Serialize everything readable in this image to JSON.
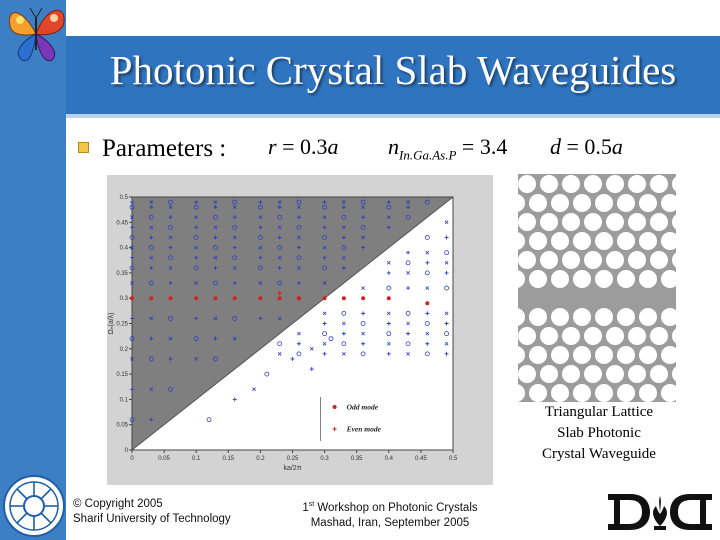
{
  "slide": {
    "title": "Photonic Crystal Slab Waveguides",
    "parameters_label": "Parameters :",
    "formulas": {
      "r_lhs": "r",
      "r_rhs": " = 0.3",
      "r_unit": "a",
      "n_lhs": "n",
      "n_sub": "In.Ga.As.P",
      "n_rhs": " = 3.4",
      "d_lhs": "d",
      "d_rhs": " = 0.5",
      "d_unit": "a"
    },
    "caption": [
      "Triangular Lattice",
      "Slab Photonic",
      "Crystal Waveguide"
    ]
  },
  "footer": {
    "copyright_line1": "© Copyright 2005",
    "copyright_line2": "Sharif University of Technology",
    "workshop_ordinal": "1",
    "workshop_sup": "st",
    "workshop_line1_rest": " Workshop on Photonic Crystals",
    "workshop_line2": "Mashad, Iran, September 2005"
  },
  "colors": {
    "title_band": "#2f74bf",
    "left_bar": "#3d7fc4",
    "light_cone": "#7f7f7f",
    "odd_mode": "#d62020",
    "even_mode": "#2b3fc4",
    "bullet": "#f2c64a"
  },
  "icons": {
    "top_logo": "butterfly-logo-icon",
    "footer_logo": "university-emblem-icon",
    "footer_right_logo": "dd-logo-icon"
  },
  "chart_data": {
    "type": "scatter",
    "xlabel": "ka/2π",
    "ylabel": "Ωₙ(a/λ)",
    "xlim": [
      0,
      0.5
    ],
    "ylim": [
      0,
      0.5
    ],
    "x_ticks": [
      "0",
      "0.05",
      "0.1",
      "0.15",
      "0.2",
      "0.25",
      "0.3",
      "0.35",
      "0.4",
      "0.45",
      "0.5"
    ],
    "y_ticks": [
      "0",
      "0.05",
      "0.1",
      "0.15",
      "0.2",
      "0.25",
      "0.3",
      "0.35",
      "0.4",
      "0.45",
      "0.5"
    ],
    "light_line": "y = x",
    "legend": [
      {
        "name": "Odd mode",
        "marker": "dot",
        "color": "#d62020"
      },
      {
        "name": "Even mode",
        "marker": "plus",
        "color": "#d62020"
      }
    ],
    "odd_mode_red": {
      "x": [
        0.0,
        0.03,
        0.06,
        0.1,
        0.13,
        0.16,
        0.2,
        0.23,
        0.26,
        0.3,
        0.33,
        0.36,
        0.4,
        0.46
      ],
      "y": [
        0.3,
        0.3,
        0.3,
        0.3,
        0.3,
        0.3,
        0.3,
        0.3,
        0.3,
        0.3,
        0.3,
        0.3,
        0.3,
        0.29
      ]
    },
    "even_mode_red": {
      "x": [
        0.23,
        0.26
      ],
      "y": [
        0.31,
        0.3
      ]
    },
    "x_columns": [
      0.0,
      0.03,
      0.06,
      0.1,
      0.13,
      0.16,
      0.2,
      0.23,
      0.26,
      0.3,
      0.33,
      0.36,
      0.4,
      0.43,
      0.46,
      0.49
    ],
    "blue_levels_above_cone": [
      0.06,
      0.12,
      0.18,
      0.22,
      0.26,
      0.33,
      0.36,
      0.38,
      0.4,
      0.42,
      0.44,
      0.46,
      0.48,
      0.49
    ],
    "blue_levels_below_cone": [
      0.19,
      0.21,
      0.23,
      0.25,
      0.27,
      0.32,
      0.35,
      0.37,
      0.39,
      0.42,
      0.45,
      0.47
    ]
  }
}
